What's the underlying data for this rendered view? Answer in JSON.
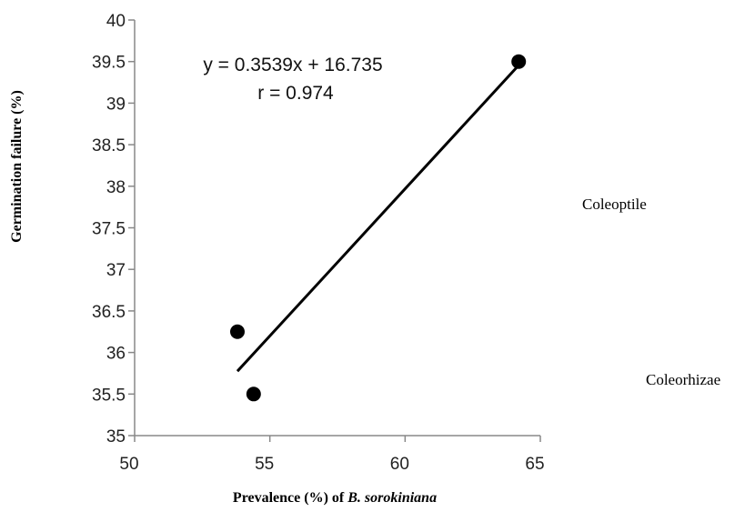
{
  "chart_data": {
    "type": "scatter",
    "xlabel_prefix": "Prevalence (%) of ",
    "xlabel_italic": "B. sorokiniana",
    "ylabel": "Germination failure (%)",
    "xlim": [
      50,
      65
    ],
    "ylim": [
      35,
      40
    ],
    "x_ticks": [
      50,
      55,
      60,
      65
    ],
    "x_tick_labels": [
      "50",
      "55",
      "60",
      "65"
    ],
    "y_ticks": [
      35,
      35.5,
      36,
      36.5,
      37,
      37.5,
      38,
      38.5,
      39,
      39.5,
      40
    ],
    "y_tick_labels": [
      "35",
      "35.5",
      "36",
      "36.5",
      "37",
      "37.5",
      "38",
      "38.5",
      "39",
      "39.5",
      "40"
    ],
    "points": [
      {
        "x": 53.8,
        "y": 36.25
      },
      {
        "x": 54.4,
        "y": 35.5
      },
      {
        "x": 64.2,
        "y": 39.5
      }
    ],
    "trendline": {
      "slope": 0.3539,
      "intercept": 16.735,
      "x_range": [
        53.8,
        64.2
      ]
    },
    "annotations": [
      "y = 0.3539x + 16.735",
      "r = 0.974"
    ],
    "side_labels": [
      "Coleoptile",
      "Coleorhizae"
    ],
    "grid": false,
    "colors": {
      "marker": "#000000",
      "line": "#000000",
      "axis": "#888888"
    }
  }
}
